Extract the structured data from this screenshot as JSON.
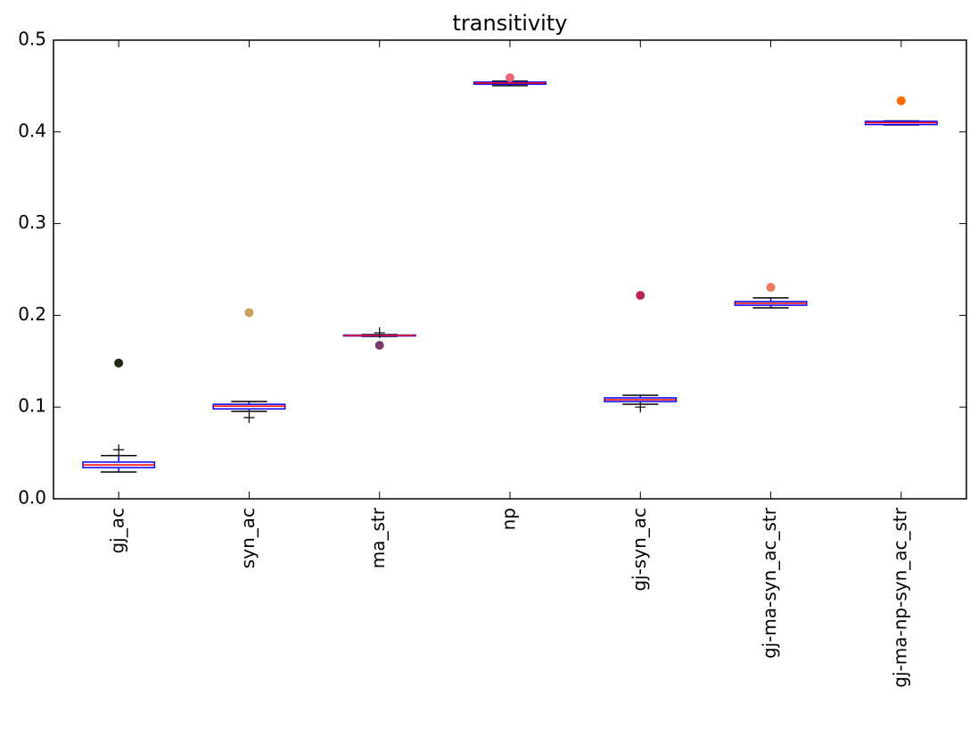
{
  "chart_data": {
    "type": "box",
    "title": "transitivity",
    "categories": [
      "gj_ac",
      "syn_ac",
      "ma_str",
      "np",
      "gj-syn_ac",
      "gj-ma-syn_ac_str",
      "gj-ma-np-syn_ac_str"
    ],
    "boxes": [
      {
        "whislo": 0.0292,
        "q1": 0.034,
        "med": 0.037,
        "q3": 0.04,
        "whishi": 0.047,
        "fliers": [
          0.0535
        ]
      },
      {
        "whislo": 0.0953,
        "q1": 0.098,
        "med": 0.101,
        "q3": 0.103,
        "whishi": 0.106,
        "fliers": [
          0.0885
        ]
      },
      {
        "whislo": 0.177,
        "q1": 0.1775,
        "med": 0.178,
        "q3": 0.1785,
        "whishi": 0.179,
        "fliers": [
          0.181
        ]
      },
      {
        "whislo": 0.4504,
        "q1": 0.452,
        "med": 0.4533,
        "q3": 0.4543,
        "whishi": 0.4553,
        "fliers": []
      },
      {
        "whislo": 0.1031,
        "q1": 0.106,
        "med": 0.108,
        "q3": 0.11,
        "whishi": 0.1128,
        "fliers": [
          0.1
        ]
      },
      {
        "whislo": 0.2082,
        "q1": 0.211,
        "med": 0.213,
        "q3": 0.215,
        "whishi": 0.219,
        "fliers": []
      },
      {
        "whislo": 0.4076,
        "q1": 0.408,
        "med": 0.41,
        "q3": 0.4115,
        "whishi": 0.412,
        "fliers": []
      }
    ],
    "points": {
      "values": [
        0.148,
        0.203,
        0.1673,
        0.459,
        0.2218,
        0.2305,
        0.4339
      ],
      "colors": [
        "#1f2a14",
        "#c9a062",
        "#7a3a6a",
        "#e8687a",
        "#b8254a",
        "#f07a60",
        "#ff6a00"
      ]
    },
    "box_color": "#0000ff",
    "median_color": "#ff0000",
    "cap_color": "#000000",
    "ylim": [
      0,
      0.5
    ],
    "yticks": [
      {
        "value": 0,
        "label": "0.0"
      },
      0.1,
      0.2,
      0.3,
      0.4,
      0.5
    ]
  }
}
